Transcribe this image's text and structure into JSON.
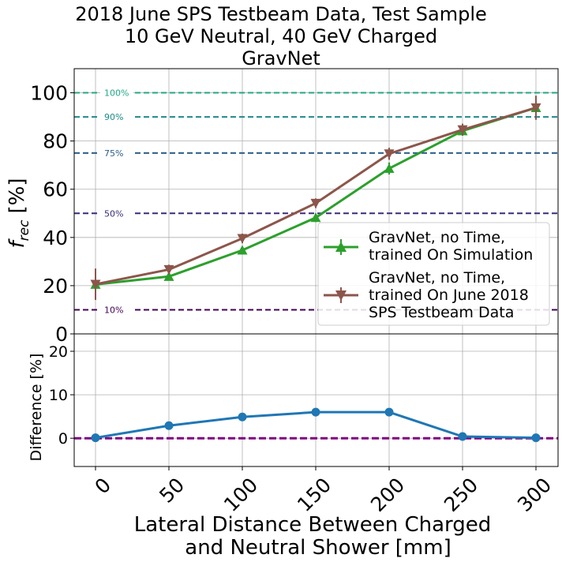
{
  "chart_data": [
    {
      "type": "line",
      "title": [
        "2018 June SPS Testbeam Data, Test Sample",
        "10 GeV Neutral, 40 GeV Charged",
        "GravNet"
      ],
      "ylabel_main": "f",
      "ylabel_sub": "rec",
      "ylabel_unit": "[%]",
      "ylim": [
        0,
        110
      ],
      "yticks": [
        "0",
        "20",
        "40",
        "60",
        "80",
        "100"
      ],
      "x": [
        0,
        50,
        100,
        150,
        200,
        250,
        300
      ],
      "grid": true,
      "legend_position": "lower-right",
      "reference_lines": [
        {
          "label": "100%",
          "y": 100,
          "color": "#22a884"
        },
        {
          "label": "90%",
          "y": 90,
          "color": "#1f8a8a"
        },
        {
          "label": "75%",
          "y": 75,
          "color": "#2c5f8a"
        },
        {
          "label": "50%",
          "y": 50,
          "color": "#3b2a7a"
        },
        {
          "label": "10%",
          "y": 10,
          "color": "#440154"
        }
      ],
      "series": [
        {
          "legend": [
            "GravNet, no Time,",
            "trained On Simulation"
          ],
          "color": "#2ca02c",
          "marker": "triangle-up",
          "y": [
            20.5,
            23.8,
            34.7,
            48.2,
            68.6,
            84.2,
            93.8
          ],
          "yerr": [
            1.5,
            1.3,
            1.3,
            1.8,
            2.5,
            2.0,
            1.5
          ]
        },
        {
          "legend": [
            "GravNet, no Time,",
            "trained On June 2018",
            "SPS Testbeam Data"
          ],
          "color": "#8c564b",
          "marker": "triangle-down",
          "y": [
            20.6,
            26.7,
            39.6,
            54.2,
            74.7,
            84.7,
            93.8
          ],
          "yerr": [
            6.5,
            2.0,
            2.0,
            2.0,
            2.5,
            2.5,
            5.0
          ]
        }
      ]
    },
    {
      "type": "line",
      "ylabel": "Difference [%]",
      "ylim": [
        -6.5,
        24
      ],
      "yticks": [
        "0",
        "10",
        "20"
      ],
      "xlabel": [
        "Lateral Distance Between Charged",
        "and Neutral Shower [mm]"
      ],
      "xticks": [
        "0",
        "50",
        "100",
        "150",
        "200",
        "250",
        "300"
      ],
      "x": [
        0,
        50,
        100,
        150,
        200,
        250,
        300
      ],
      "grid": true,
      "series": [
        {
          "color": "#1f77b4",
          "y": [
            0.1,
            2.9,
            4.9,
            6.0,
            6.0,
            0.4,
            0.1
          ]
        }
      ],
      "reference_line": {
        "y": 0,
        "color": "#800080"
      }
    }
  ]
}
